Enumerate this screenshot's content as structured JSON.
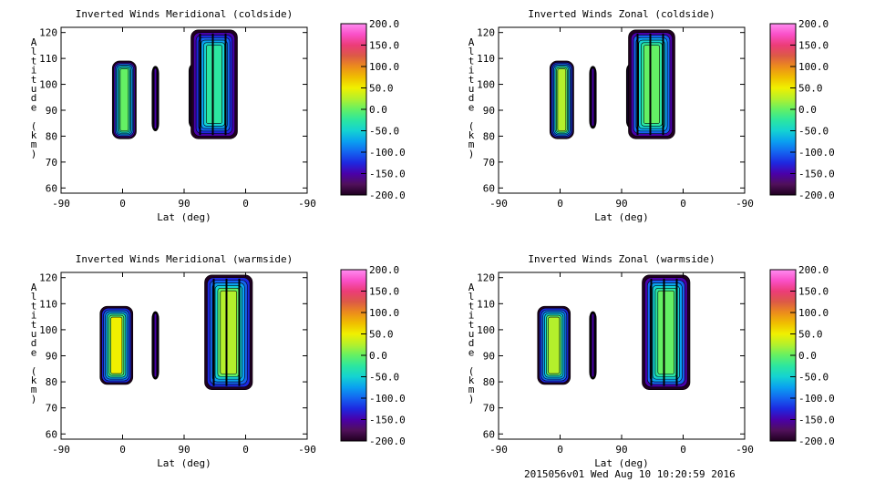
{
  "footer_text": "2015056v01 Wed Aug 10 10:20:59 2016",
  "colormap": [
    "#200020",
    "#50105a",
    "#4a00aa",
    "#1e28e0",
    "#1464f0",
    "#0aa0f0",
    "#14d2d2",
    "#2ce6a0",
    "#64f064",
    "#b4f02c",
    "#f0f000",
    "#f0be00",
    "#ec8c1c",
    "#dc5a46",
    "#ec3c78",
    "#fa50c8",
    "#ff8cf0"
  ],
  "contour_line_color": "#000000",
  "chart_data": [
    {
      "type": "heatmap",
      "title": "Inverted Winds Meridional (coldside)",
      "xlabel": "Lat (deg)",
      "ylabel": "Altitude (km)",
      "xticks": [
        "-90",
        "0",
        "90",
        "0",
        "-90"
      ],
      "yticks": [
        "60",
        "70",
        "80",
        "90",
        "100",
        "110",
        "120"
      ],
      "ylim": [
        58,
        122
      ],
      "colorbar_ticks": [
        "200.0",
        "150.0",
        "100.0",
        "50.0",
        "0.0",
        "-50.0",
        "-100.0",
        "-150.0",
        "-200.0"
      ],
      "colorbar_range": [
        -200,
        200
      ],
      "regions": [
        {
          "x": [
            -15,
            20
          ],
          "alt": [
            79,
            109
          ],
          "center_value": 10
        },
        {
          "x": [
            43,
            53
          ],
          "alt": [
            82,
            107
          ],
          "center_value": -140
        },
        {
          "x": [
            97,
            112
          ],
          "alt": [
            83,
            108
          ],
          "center_value": -110
        },
        {
          "x": [
            100,
            168
          ],
          "alt": [
            79,
            121
          ],
          "center_value": -20
        }
      ]
    },
    {
      "type": "heatmap",
      "title": "Inverted Winds Zonal (coldside)",
      "xlabel": "Lat (deg)",
      "ylabel": "Altitude (km)",
      "xticks": [
        "-90",
        "0",
        "90",
        "0",
        "-90"
      ],
      "yticks": [
        "60",
        "70",
        "80",
        "90",
        "100",
        "110",
        "120"
      ],
      "ylim": [
        58,
        122
      ],
      "colorbar_ticks": [
        "200.0",
        "150.0",
        "100.0",
        "50.0",
        "0.0",
        "-50.0",
        "-100.0",
        "-150.0",
        "-200.0"
      ],
      "colorbar_range": [
        -200,
        200
      ],
      "regions": [
        {
          "x": [
            -15,
            20
          ],
          "alt": [
            79,
            109
          ],
          "center_value": 30
        },
        {
          "x": [
            43,
            53
          ],
          "alt": [
            83,
            107
          ],
          "center_value": -140
        },
        {
          "x": [
            97,
            112
          ],
          "alt": [
            83,
            108
          ],
          "center_value": -110
        },
        {
          "x": [
            100,
            168
          ],
          "alt": [
            79,
            121
          ],
          "center_value": 10
        }
      ]
    },
    {
      "type": "heatmap",
      "title": "Inverted Winds Meridional (warmside)",
      "xlabel": "Lat (deg)",
      "ylabel": "Altitude (km)",
      "xticks": [
        "-90",
        "0",
        "90",
        "0",
        "-90"
      ],
      "yticks": [
        "60",
        "70",
        "80",
        "90",
        "100",
        "110",
        "120"
      ],
      "ylim": [
        58,
        122
      ],
      "colorbar_ticks": [
        "200.0",
        "150.0",
        "100.0",
        "50.0",
        "0.0",
        "-50.0",
        "-100.0",
        "-150.0",
        "-200.0"
      ],
      "colorbar_range": [
        -200,
        200
      ],
      "regions": [
        {
          "x": [
            -33,
            15
          ],
          "alt": [
            79,
            109
          ],
          "center_value": 40
        },
        {
          "x": [
            43,
            53
          ],
          "alt": [
            81,
            107
          ],
          "center_value": -140
        },
        {
          "x": [
            120,
            190
          ],
          "alt": [
            77,
            121
          ],
          "center_value": 20
        }
      ]
    },
    {
      "type": "heatmap",
      "title": "Inverted Winds Zonal (warmside)",
      "xlabel": "Lat (deg)",
      "ylabel": "Altitude (km)",
      "xticks": [
        "-90",
        "0",
        "90",
        "0",
        "-90"
      ],
      "yticks": [
        "60",
        "70",
        "80",
        "90",
        "100",
        "110",
        "120"
      ],
      "ylim": [
        58,
        122
      ],
      "colorbar_ticks": [
        "200.0",
        "150.0",
        "100.0",
        "50.0",
        "0.0",
        "-50.0",
        "-100.0",
        "-150.0",
        "-200.0"
      ],
      "colorbar_range": [
        -200,
        200
      ],
      "regions": [
        {
          "x": [
            -33,
            15
          ],
          "alt": [
            79,
            109
          ],
          "center_value": 20
        },
        {
          "x": [
            43,
            53
          ],
          "alt": [
            81,
            107
          ],
          "center_value": -140
        },
        {
          "x": [
            120,
            190
          ],
          "alt": [
            77,
            121
          ],
          "center_value": 10
        }
      ]
    }
  ]
}
